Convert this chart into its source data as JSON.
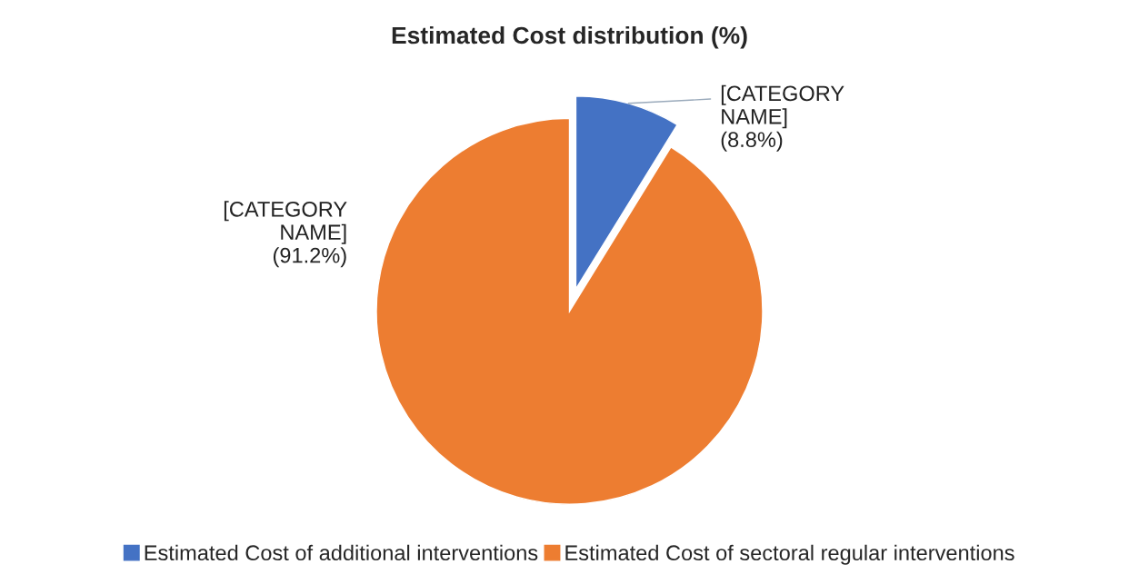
{
  "chart_data": {
    "type": "pie",
    "title": "Estimated Cost distribution (%)",
    "categories": [
      "Estimated Cost of additional interventions",
      "Estimated Cost of sectoral regular interventions"
    ],
    "values": [
      8.8,
      91.2
    ],
    "colors": [
      "#4472c4",
      "#ed7d31"
    ],
    "value_labels": [
      "[CATEGORY\nNAME]\n(8.8%)",
      "[CATEGORY\nNAME]\n(91.2%)"
    ],
    "legend": "bottom"
  }
}
